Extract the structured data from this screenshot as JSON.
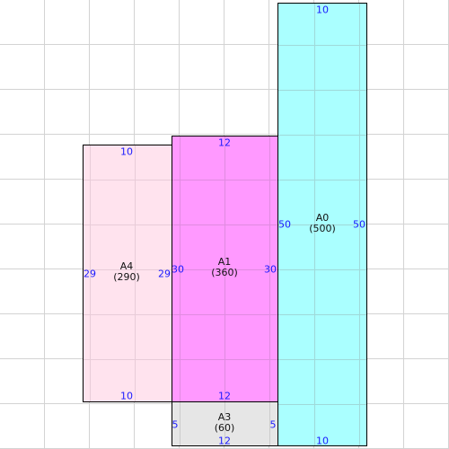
{
  "colors": {
    "A0": "#aaffff",
    "A1": "#ff99ff",
    "A3": "#e6e6e6",
    "A4": "#ffe3ee",
    "dimension_text": "#1a1aff",
    "grid": "#d3d3d3"
  },
  "rooms": {
    "A0": {
      "name": "A0",
      "area": "(500)",
      "top": "10",
      "bottom": "10",
      "left": "50",
      "right": "50"
    },
    "A1": {
      "name": "A1",
      "area": "(360)",
      "top": "12",
      "bottom": "12",
      "left": "30",
      "right": "30"
    },
    "A3": {
      "name": "A3",
      "area": "(60)",
      "bottom": "12",
      "left": "5",
      "right": "5"
    },
    "A4": {
      "name": "A4",
      "area": "(290)",
      "top": "10",
      "bottom": "10",
      "left": "29",
      "right": "29"
    }
  }
}
